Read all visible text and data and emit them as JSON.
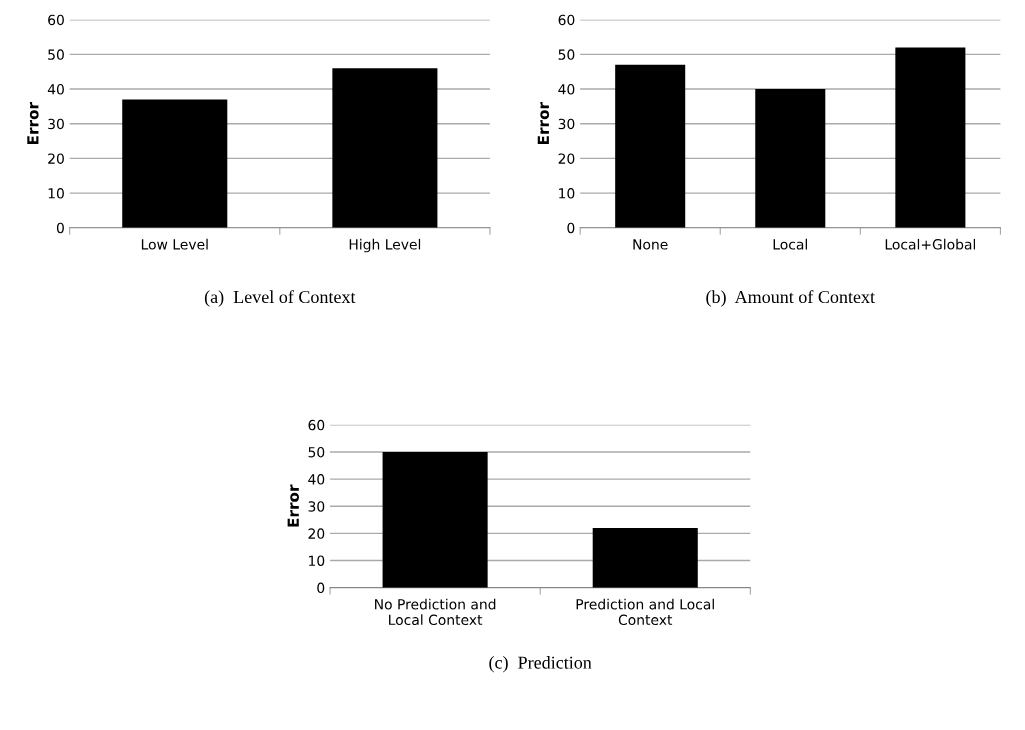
{
  "chart_data": [
    {
      "type": "bar",
      "title": "(a)  Level of Context",
      "ylabel": "Error",
      "categories": [
        "Low Level",
        "High Level"
      ],
      "values": [
        37,
        46
      ],
      "color": "#000000",
      "ylim": [
        0,
        60
      ],
      "yticks": [
        0,
        10,
        20,
        30,
        40,
        50,
        60
      ],
      "grid": "y"
    },
    {
      "type": "bar",
      "title": "(b)  Amount of Context",
      "ylabel": "Error",
      "categories": [
        "None",
        "Local",
        "Local+Global"
      ],
      "values": [
        47,
        40,
        52
      ],
      "color": "#000000",
      "ylim": [
        0,
        60
      ],
      "yticks": [
        0,
        10,
        20,
        30,
        40,
        50,
        60
      ],
      "grid": "y"
    },
    {
      "type": "bar",
      "title": "(c)  Prediction",
      "ylabel": "Error",
      "categories": [
        "No Prediction and\nLocal Context",
        "Prediction and Local\nContext"
      ],
      "values": [
        50,
        22
      ],
      "color": "#000000",
      "ylim": [
        0,
        60
      ],
      "yticks": [
        0,
        10,
        20,
        30,
        40,
        50,
        60
      ],
      "grid": "y"
    }
  ]
}
